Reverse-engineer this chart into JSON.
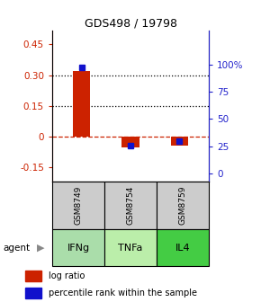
{
  "title": "GDS498 / 19798",
  "samples": [
    "GSM8749",
    "GSM8754",
    "GSM8759"
  ],
  "agents": [
    "IFNg",
    "TNFa",
    "IL4"
  ],
  "log_ratios": [
    0.32,
    -0.055,
    -0.045
  ],
  "percentile_ranks": [
    97,
    26,
    30
  ],
  "ylim_left": [
    -0.22,
    0.52
  ],
  "ylim_right": [
    -6.875,
    131.25
  ],
  "yticks_left": [
    -0.15,
    0.0,
    0.15,
    0.3,
    0.45
  ],
  "ytick_labels_left": [
    "-0.15",
    "0",
    "0.15",
    "0.30",
    "0.45"
  ],
  "yticks_right": [
    0,
    25,
    50,
    75,
    100
  ],
  "ytick_labels_right": [
    "0",
    "25",
    "50",
    "75",
    "100%"
  ],
  "hlines_dotted": [
    0.3,
    0.15
  ],
  "hline_dashed": 0.0,
  "bar_color": "#cc2200",
  "dot_color": "#1111cc",
  "agent_colors": {
    "IFNg": "#aaddaa",
    "TNFa": "#bbeeaa",
    "IL4": "#44cc44"
  },
  "sample_bg_color": "#cccccc",
  "zero_line_color": "#cc2200",
  "bar_width": 0.35,
  "left_tick_color": "#cc2200",
  "right_tick_color": "#2222cc",
  "dot_size": 4
}
